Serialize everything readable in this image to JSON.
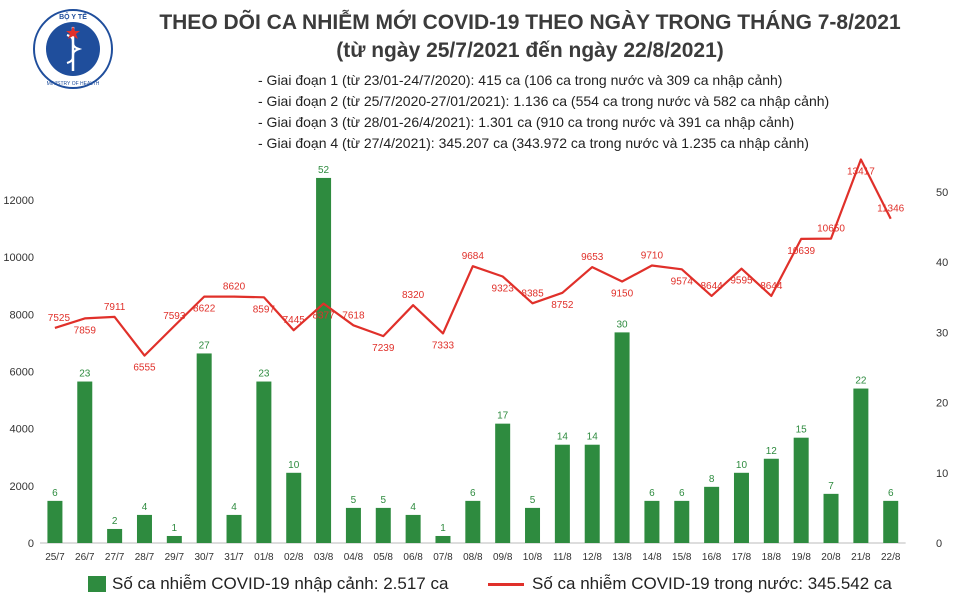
{
  "header": {
    "logo_text_top": "BỘ Y TẾ",
    "logo_text_bottom": "MINISTRY OF HEALTH",
    "title": "THEO DÕI CA NHIỄM MỚI COVID-19 THEO NGÀY TRONG THÁNG 7-8/2021",
    "subtitle": "(từ ngày 25/7/2021 đến ngày 22/8/2021)"
  },
  "phases": [
    "- Giai đoạn 1 (từ 23/01-24/7/2020): 415 ca (106 ca trong nước và 309 ca nhập cảnh)",
    "- Giai đoạn 2 (từ 25/7/2020-27/01/2021): 1.136 ca (554 ca trong nước và 582 ca nhập cảnh)",
    "- Giai đoạn 3 (từ 28/01-26/4/2021): 1.301 ca (910 ca trong nước và 391 ca nhập cảnh)",
    "- Giai đoạn 4 (từ 27/4/2021): 345.207 ca (343.972 ca trong nước và 1.235 ca nhập cảnh)"
  ],
  "legend": {
    "bar_label": "Số ca nhiễm COVID-19 nhập cảnh: 2.517 ca",
    "line_label": "Số ca nhiễm COVID-19 trong nước: 345.542 ca"
  },
  "colors": {
    "bar": "#2e8b3f",
    "line": "#e0302a",
    "title": "#3b3b3b"
  },
  "chart_data": {
    "type": "bar+line",
    "categories": [
      "25/7",
      "26/7",
      "27/7",
      "28/7",
      "29/7",
      "30/7",
      "31/7",
      "01/8",
      "02/8",
      "03/8",
      "04/8",
      "05/8",
      "06/8",
      "07/8",
      "08/8",
      "09/8",
      "10/8",
      "11/8",
      "12/8",
      "13/8",
      "14/8",
      "15/8",
      "16/8",
      "17/8",
      "18/8",
      "19/8",
      "20/8",
      "21/8",
      "22/8"
    ],
    "series": [
      {
        "name": "Số ca nhiễm COVID-19 nhập cảnh",
        "kind": "bar",
        "axis": "right",
        "values": [
          6,
          23,
          2,
          4,
          1,
          27,
          4,
          23,
          10,
          52,
          5,
          5,
          4,
          1,
          6,
          17,
          5,
          14,
          14,
          30,
          6,
          6,
          8,
          10,
          12,
          15,
          7,
          22,
          6
        ]
      },
      {
        "name": "Số ca nhiễm COVID-19 trong nước",
        "kind": "line",
        "axis": "left",
        "values": [
          7525,
          7859,
          7911,
          6555,
          7593,
          8622,
          8620,
          8597,
          7445,
          8377,
          7618,
          7239,
          8320,
          7333,
          9684,
          9323,
          8385,
          8752,
          9653,
          9150,
          9710,
          9574,
          8644,
          9595,
          8644,
          10639,
          10650,
          13417,
          11346
        ]
      }
    ],
    "ylim_left": [
      0,
      14000
    ],
    "left_ticks": [
      0,
      2000,
      4000,
      6000,
      8000,
      10000,
      12000
    ],
    "ylim_right": [
      0,
      57
    ],
    "right_ticks": [
      0,
      10,
      20,
      30,
      40,
      50
    ],
    "grid": false
  }
}
